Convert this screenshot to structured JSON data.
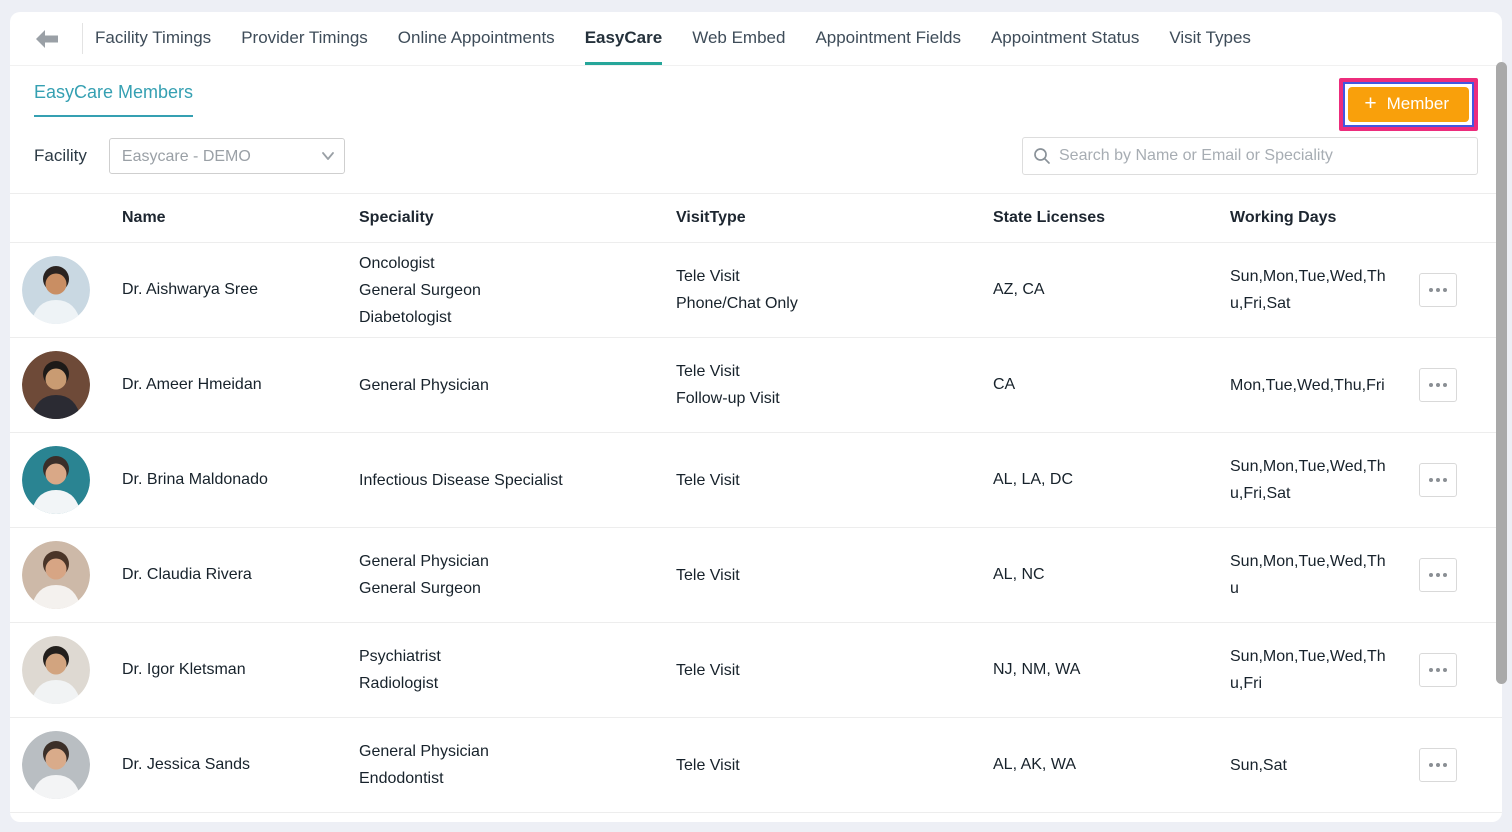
{
  "nav": {
    "back_icon": "back-arrow-icon",
    "tabs": [
      {
        "label": "Facility Timings",
        "active": false
      },
      {
        "label": "Provider Timings",
        "active": false
      },
      {
        "label": "Online Appointments",
        "active": false
      },
      {
        "label": "EasyCare",
        "active": true
      },
      {
        "label": "Web Embed",
        "active": false
      },
      {
        "label": "Appointment Fields",
        "active": false
      },
      {
        "label": "Appointment Status",
        "active": false
      },
      {
        "label": "Visit Types",
        "active": false
      }
    ]
  },
  "header": {
    "title": "EasyCare Members",
    "add_member": {
      "plus_icon": "+",
      "label": "Member"
    }
  },
  "filters": {
    "facility_label": "Facility",
    "facility_selected": "Easycare - DEMO",
    "search_placeholder": "Search by Name or Email or Speciality"
  },
  "table": {
    "columns": [
      "Name",
      "Speciality",
      "VisitType",
      "State Licenses",
      "Working Days"
    ],
    "members": [
      {
        "name": "Dr. Aishwarya Sree",
        "specialities": [
          "Oncologist",
          "General Surgeon",
          "Diabetologist"
        ],
        "visit_types": [
          "Tele Visit",
          "Phone/Chat Only"
        ],
        "state_licenses": "AZ, CA",
        "working_days": "Sun,Mon,Tue,Wed,Thu,Fri,Sat",
        "avatar": {
          "bg": "#c9d8e2",
          "skin": "#c98e63",
          "hair": "#2a2320",
          "coat": "#eef3f6"
        }
      },
      {
        "name": "Dr. Ameer Hmeidan",
        "specialities": [
          "General Physician"
        ],
        "visit_types": [
          "Tele Visit",
          "Follow-up Visit"
        ],
        "state_licenses": "CA",
        "working_days": "Mon,Tue,Wed,Thu,Fri",
        "avatar": {
          "bg": "#6e4a38",
          "skin": "#c99b72",
          "hair": "#1d1a18",
          "coat": "#2b2b33"
        }
      },
      {
        "name": "Dr. Brina Maldonado",
        "specialities": [
          "Infectious Disease Specialist"
        ],
        "visit_types": [
          "Tele Visit"
        ],
        "state_licenses": "AL, LA, DC",
        "working_days": "Sun,Mon,Tue,Wed,Thu,Fri,Sat",
        "avatar": {
          "bg": "#2a8492",
          "skin": "#d9a887",
          "hair": "#3a2e29",
          "coat": "#f2f5f7"
        }
      },
      {
        "name": "Dr. Claudia Rivera",
        "specialities": [
          "General Physician",
          "General Surgeon"
        ],
        "visit_types": [
          "Tele Visit"
        ],
        "state_licenses": "AL, NC",
        "working_days": "Sun,Mon,Tue,Wed,Thu",
        "avatar": {
          "bg": "#cdb9a8",
          "skin": "#d7a584",
          "hair": "#4a3528",
          "coat": "#f4f1ee"
        }
      },
      {
        "name": "Dr. Igor Kletsman",
        "specialities": [
          "Psychiatrist",
          "Radiologist"
        ],
        "visit_types": [
          "Tele Visit"
        ],
        "state_licenses": "NJ, NM, WA",
        "working_days": "Sun,Mon,Tue,Wed,Thu,Fri",
        "avatar": {
          "bg": "#ded9d2",
          "skin": "#d2a47f",
          "hair": "#231f1c",
          "coat": "#f1f3f4"
        }
      },
      {
        "name": "Dr. Jessica Sands",
        "specialities": [
          "General Physician",
          "Endodontist"
        ],
        "visit_types": [
          "Tele Visit"
        ],
        "state_licenses": "AL, AK, WA",
        "working_days": "Sun,Sat",
        "avatar": {
          "bg": "#b9bec2",
          "skin": "#d9ab8a",
          "hair": "#3b2f28",
          "coat": "#f3f4f5"
        }
      }
    ]
  },
  "colors": {
    "teal": "#26a69a",
    "title-teal": "#35a0b2",
    "orange": "#f9a00b",
    "annotation-pink": "#ec2c7c",
    "focus-blue": "#4257e0"
  }
}
